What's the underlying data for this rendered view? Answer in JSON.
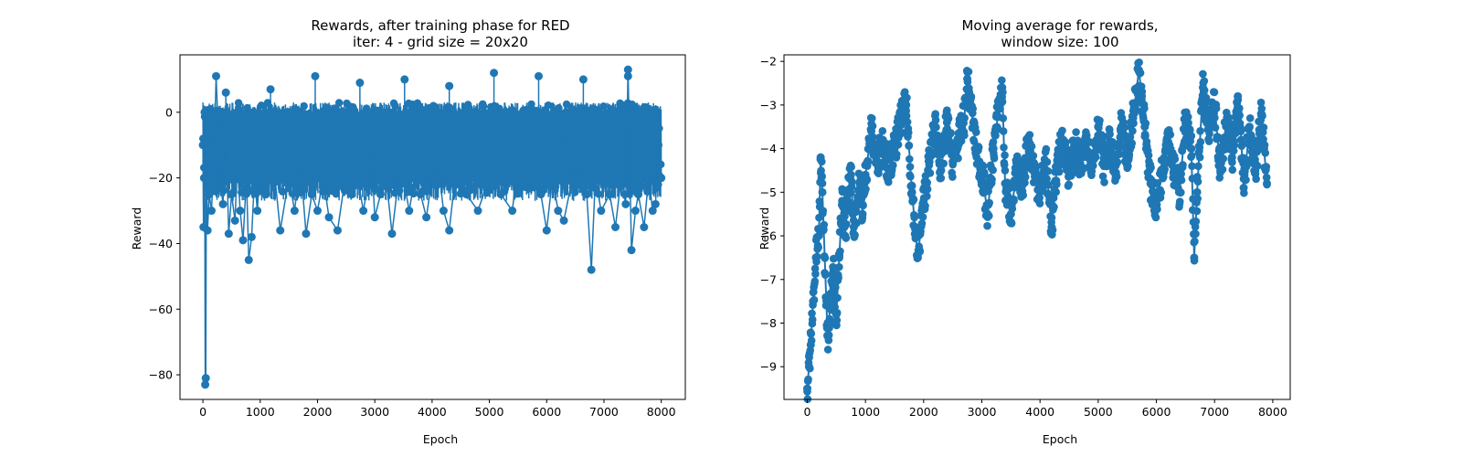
{
  "chart_data": [
    {
      "type": "line",
      "marker": "circle",
      "title": "Rewards, after training phase for RED",
      "subtitle": "iter: 4 - grid size = 20x20",
      "xlabel": "Epoch",
      "ylabel": "Reward",
      "xlim": [
        -400,
        8420
      ],
      "ylim": [
        -87.5,
        17.5
      ],
      "xticks": [
        0,
        1000,
        2000,
        3000,
        4000,
        5000,
        6000,
        7000,
        8000
      ],
      "yticks": [
        0,
        -20,
        -40,
        -60,
        -80
      ],
      "grid": false,
      "color": "#1f77b4",
      "series": [
        {
          "x": [
            0,
            10,
            20,
            30,
            40,
            50,
            60,
            80,
            110,
            150,
            200,
            230,
            300,
            350,
            400,
            450,
            500,
            560,
            600,
            650,
            700,
            760,
            800,
            850,
            900,
            950,
            1000,
            1100,
            1200,
            1350,
            1500,
            1600,
            1700,
            1800,
            1900,
            2000,
            2100,
            2200,
            2350,
            2500,
            2600,
            2700,
            2800,
            2950,
            3000,
            3100,
            3200,
            3300,
            3450,
            3600,
            3700,
            3800,
            3900,
            4000,
            4100,
            4200,
            4300,
            4400,
            4600,
            4800,
            5000,
            5200,
            5400,
            5500,
            5700,
            5900,
            6000,
            6100,
            6200,
            6300,
            6450,
            6550,
            6700,
            6780,
            6850,
            6950,
            7100,
            7200,
            7300,
            7380,
            7420,
            7480,
            7550,
            7600,
            7700,
            7780,
            7850,
            7900,
            7950,
            8000
          ],
          "y": [
            -10,
            -35,
            -20,
            0,
            -83,
            -81,
            -15,
            -36,
            -25,
            -30,
            -10,
            11,
            -20,
            -28,
            -5,
            -37,
            -25,
            -33,
            -15,
            -30,
            -39,
            -20,
            -45,
            -38,
            -20,
            -30,
            -15,
            -25,
            -10,
            -36,
            -20,
            -30,
            -15,
            -37,
            -25,
            -30,
            -20,
            -32,
            -36,
            -18,
            -25,
            -20,
            -30,
            -15,
            -32,
            -25,
            -20,
            -37,
            -15,
            -30,
            -20,
            -25,
            -32,
            -20,
            -15,
            -30,
            -36,
            -20,
            -25,
            -30,
            -20,
            -25,
            -30,
            -15,
            -20,
            -25,
            -36,
            -20,
            -30,
            -33,
            -20,
            -15,
            -25,
            -48,
            -20,
            -30,
            -25,
            -35,
            -20,
            -28,
            13,
            -42,
            -30,
            -25,
            -35,
            -20,
            -30,
            -28,
            -10,
            -20
          ]
        }
      ],
      "band": {
        "top": 3,
        "bottom": -25,
        "outlier_high": [
          6,
          7,
          11,
          9,
          10,
          8,
          12,
          11,
          10,
          11
        ]
      }
    },
    {
      "type": "line",
      "marker": "circle",
      "title": "Moving average for rewards,",
      "subtitle": "window size: 100",
      "xlabel": "Epoch",
      "ylabel": "Reward",
      "xlim": [
        -400,
        8300
      ],
      "ylim": [
        -9.75,
        -1.85
      ],
      "xticks": [
        0,
        1000,
        2000,
        3000,
        4000,
        5000,
        6000,
        7000,
        8000
      ],
      "yticks": [
        -2,
        -3,
        -4,
        -5,
        -6,
        -7,
        -8,
        -9
      ],
      "grid": false,
      "color": "#1f77b4",
      "series": [
        {
          "x": [
            0,
            30,
            60,
            100,
            150,
            200,
            230,
            260,
            300,
            350,
            400,
            450,
            500,
            550,
            600,
            650,
            700,
            750,
            800,
            850,
            900,
            950,
            1000,
            1100,
            1200,
            1300,
            1400,
            1500,
            1600,
            1700,
            1800,
            1900,
            2000,
            2100,
            2200,
            2300,
            2400,
            2500,
            2600,
            2700,
            2750,
            2800,
            2900,
            3000,
            3100,
            3200,
            3300,
            3350,
            3400,
            3500,
            3600,
            3700,
            3800,
            3900,
            4000,
            4100,
            4200,
            4300,
            4400,
            4500,
            4600,
            4700,
            4800,
            4900,
            5000,
            5100,
            5200,
            5300,
            5400,
            5500,
            5600,
            5700,
            5750,
            5800,
            5900,
            6000,
            6100,
            6200,
            6300,
            6400,
            6500,
            6600,
            6650,
            6700,
            6800,
            6900,
            7000,
            7100,
            7200,
            7300,
            7400,
            7450,
            7500,
            7600,
            7700,
            7800,
            7850,
            7900
          ],
          "y": [
            -9.5,
            -9.0,
            -8.5,
            -7.5,
            -6.5,
            -6.0,
            -4.2,
            -5.0,
            -6.5,
            -8.3,
            -7.5,
            -6.8,
            -7.8,
            -6.5,
            -5.2,
            -6.0,
            -5.0,
            -4.6,
            -5.8,
            -5.3,
            -4.8,
            -5.5,
            -4.6,
            -3.6,
            -4.3,
            -3.8,
            -4.5,
            -4.0,
            -3.4,
            -3.0,
            -5.0,
            -6.5,
            -5.2,
            -4.3,
            -3.5,
            -4.5,
            -3.4,
            -4.3,
            -3.8,
            -3.3,
            -2.4,
            -2.9,
            -4.0,
            -4.5,
            -5.5,
            -4.0,
            -3.0,
            -2.6,
            -4.8,
            -5.5,
            -4.5,
            -4.8,
            -3.8,
            -4.5,
            -5.0,
            -4.3,
            -5.8,
            -4.3,
            -3.8,
            -4.6,
            -3.9,
            -4.5,
            -3.7,
            -4.4,
            -3.5,
            -4.4,
            -3.9,
            -4.6,
            -3.5,
            -4.3,
            -3.3,
            -2.2,
            -2.8,
            -3.5,
            -4.8,
            -5.3,
            -4.5,
            -3.6,
            -4.5,
            -5.0,
            -3.3,
            -4.0,
            -6.5,
            -5.0,
            -2.6,
            -3.5,
            -3.0,
            -4.5,
            -3.4,
            -4.2,
            -2.8,
            -3.6,
            -4.9,
            -3.5,
            -4.5,
            -3.2,
            -4.0,
            -4.8
          ]
        }
      ],
      "band": {
        "half_width": 0.4
      }
    }
  ]
}
